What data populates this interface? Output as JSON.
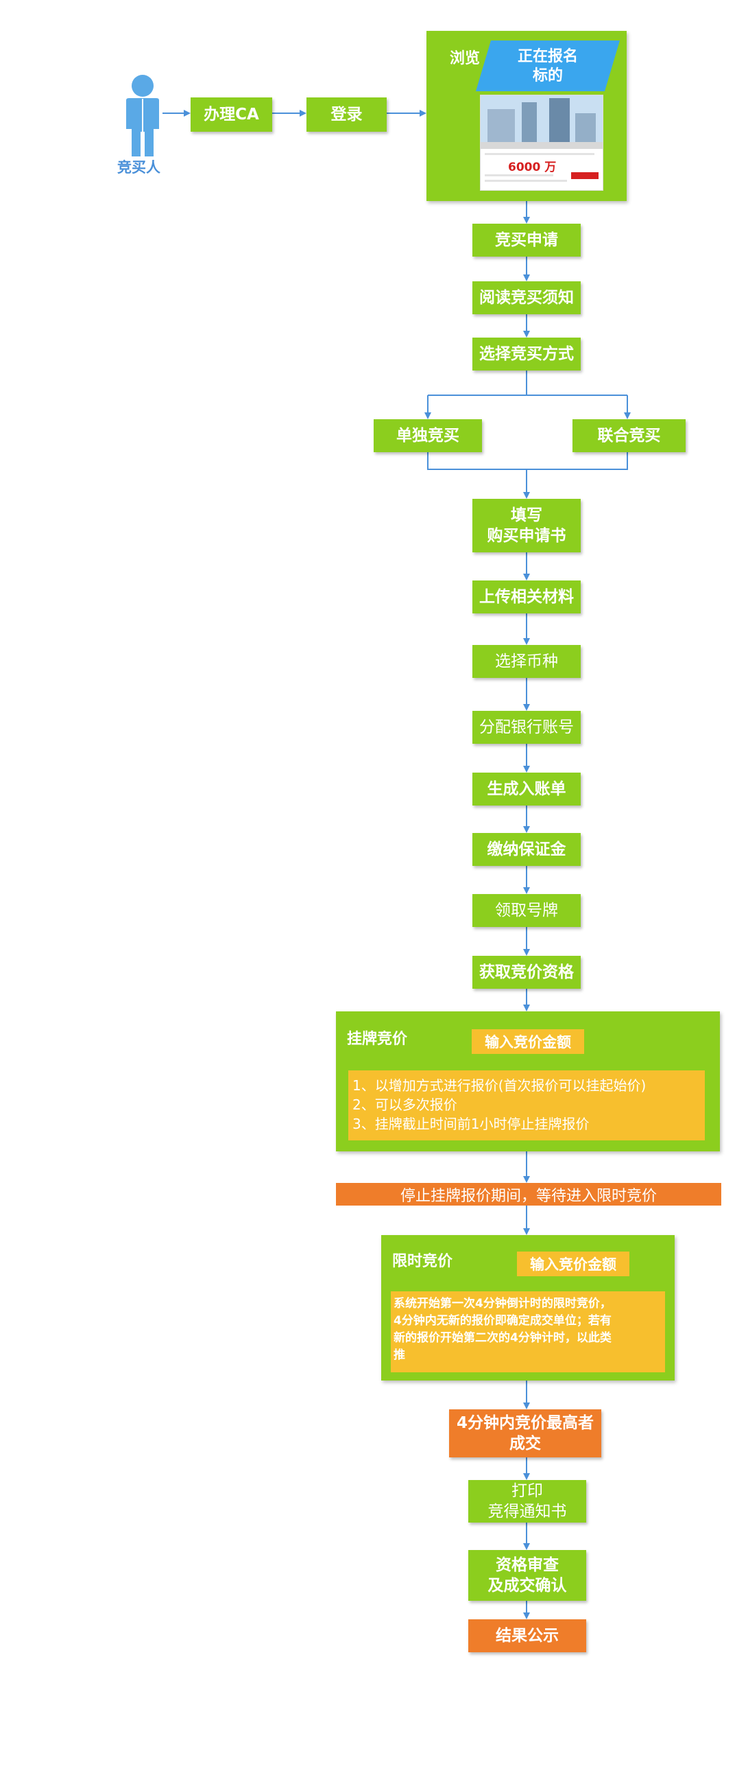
{
  "actor": {
    "label": "竞买人",
    "icon": "person-icon",
    "color": "#5aa9e6"
  },
  "top_row": {
    "ca": "办理CA",
    "login": "登录"
  },
  "browse": {
    "label": "浏览",
    "tag": "正在报名\n标的",
    "thumb": {
      "price": "6000 万"
    }
  },
  "steps": {
    "apply": "竞买申请",
    "read_notice": "阅读竞买须知",
    "choose_mode": "选择竞买方式",
    "single": "单独竞买",
    "joint": "联合竞买",
    "fill_form": "填写\n购买申请书",
    "upload": "上传相关材料",
    "currency": "选择币种",
    "bank": "分配银行账号",
    "bill": "生成入账单",
    "deposit": "缴纳保证金",
    "number_plate": "领取号牌",
    "qualify": "获取竞价资格"
  },
  "listing_bid": {
    "title": "挂牌竞价",
    "input_label": "输入竞价金额",
    "rules": [
      "1、以增加方式进行报价(首次报价可以挂起始价)",
      "2、可以多次报价",
      "3、挂牌截止时间前1小时停止挂牌报价"
    ]
  },
  "pause_banner": "停止挂牌报价期间，等待进入限时竞价",
  "timed_bid": {
    "title": "限时竞价",
    "input_label": "输入竞价金额",
    "rule_lines": [
      "系统开始第一次4分钟倒计时的限时竞价，",
      "4分钟内无新的报价即确定成交单位；若有",
      "新的报价开始第二次的4分钟计时，以此类",
      "推"
    ]
  },
  "deal": "4分钟内竞价最高者\n成交",
  "print_notice": "打印\n竞得通知书",
  "review": "资格审查\n及成交确认",
  "publish": "结果公示",
  "colors": {
    "green": "#8cce1e",
    "orange": "#ef7d2a",
    "yellow": "#f7bf2e",
    "arrow": "#4a90d9",
    "tag_blue": "#3aa6ee"
  }
}
